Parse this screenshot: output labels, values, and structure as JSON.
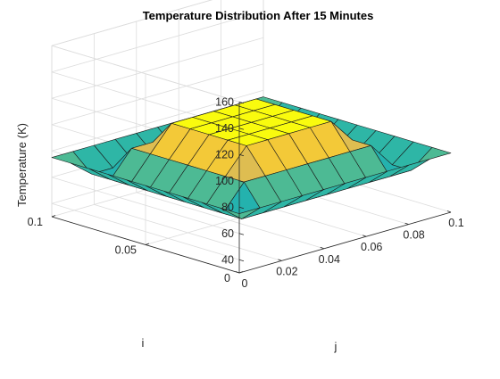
{
  "chart_data": {
    "type": "surface",
    "title": "Temperature Distribution After 15 Minutes",
    "xlabel": "j",
    "ylabel": "i",
    "zlabel": "Temperature (K)",
    "x": [
      0,
      0.01,
      0.02,
      0.03,
      0.04,
      0.05,
      0.06,
      0.07,
      0.08,
      0.09,
      0.1
    ],
    "y": [
      0,
      0.01,
      0.02,
      0.03,
      0.04,
      0.05,
      0.06,
      0.07,
      0.08,
      0.09,
      0.1
    ],
    "xlim": [
      0,
      0.1
    ],
    "ylim": [
      0,
      0.1
    ],
    "zlim": [
      30,
      160
    ],
    "x_ticks": [
      "0",
      "0.02",
      "0.04",
      "0.06",
      "0.08",
      "0.1"
    ],
    "y_ticks": [
      "0",
      "0.05",
      "0.1"
    ],
    "z_ticks": [
      "40",
      "60",
      "80",
      "100",
      "120",
      "140",
      "160"
    ],
    "edge_temperature": 75,
    "center_temperature": 100,
    "grid": true,
    "colormap": {
      "name": "parula",
      "stops": [
        "#352a87",
        "#0363e1",
        "#1485d4",
        "#06a7c6",
        "#38b99e",
        "#92bf73",
        "#d9ba56",
        "#fcce2e",
        "#f9fb0e"
      ]
    }
  }
}
